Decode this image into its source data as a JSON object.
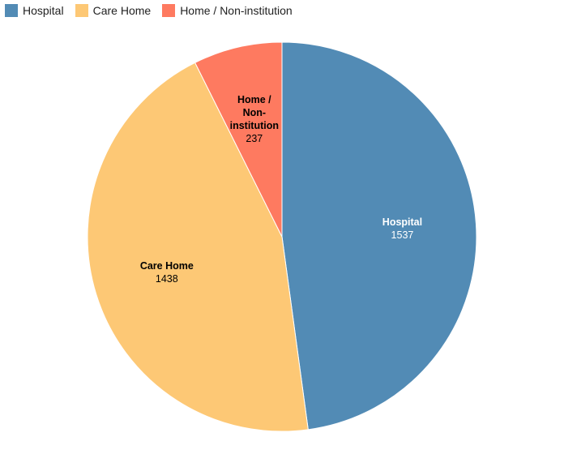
{
  "chart_data": {
    "type": "pie",
    "categories": [
      "Hospital",
      "Care Home",
      "Home / Non-institution"
    ],
    "values": [
      1537,
      1438,
      237
    ],
    "colors": [
      "#528bb5",
      "#fdc875",
      "#fe7a60"
    ],
    "legend": "top-left"
  }
}
